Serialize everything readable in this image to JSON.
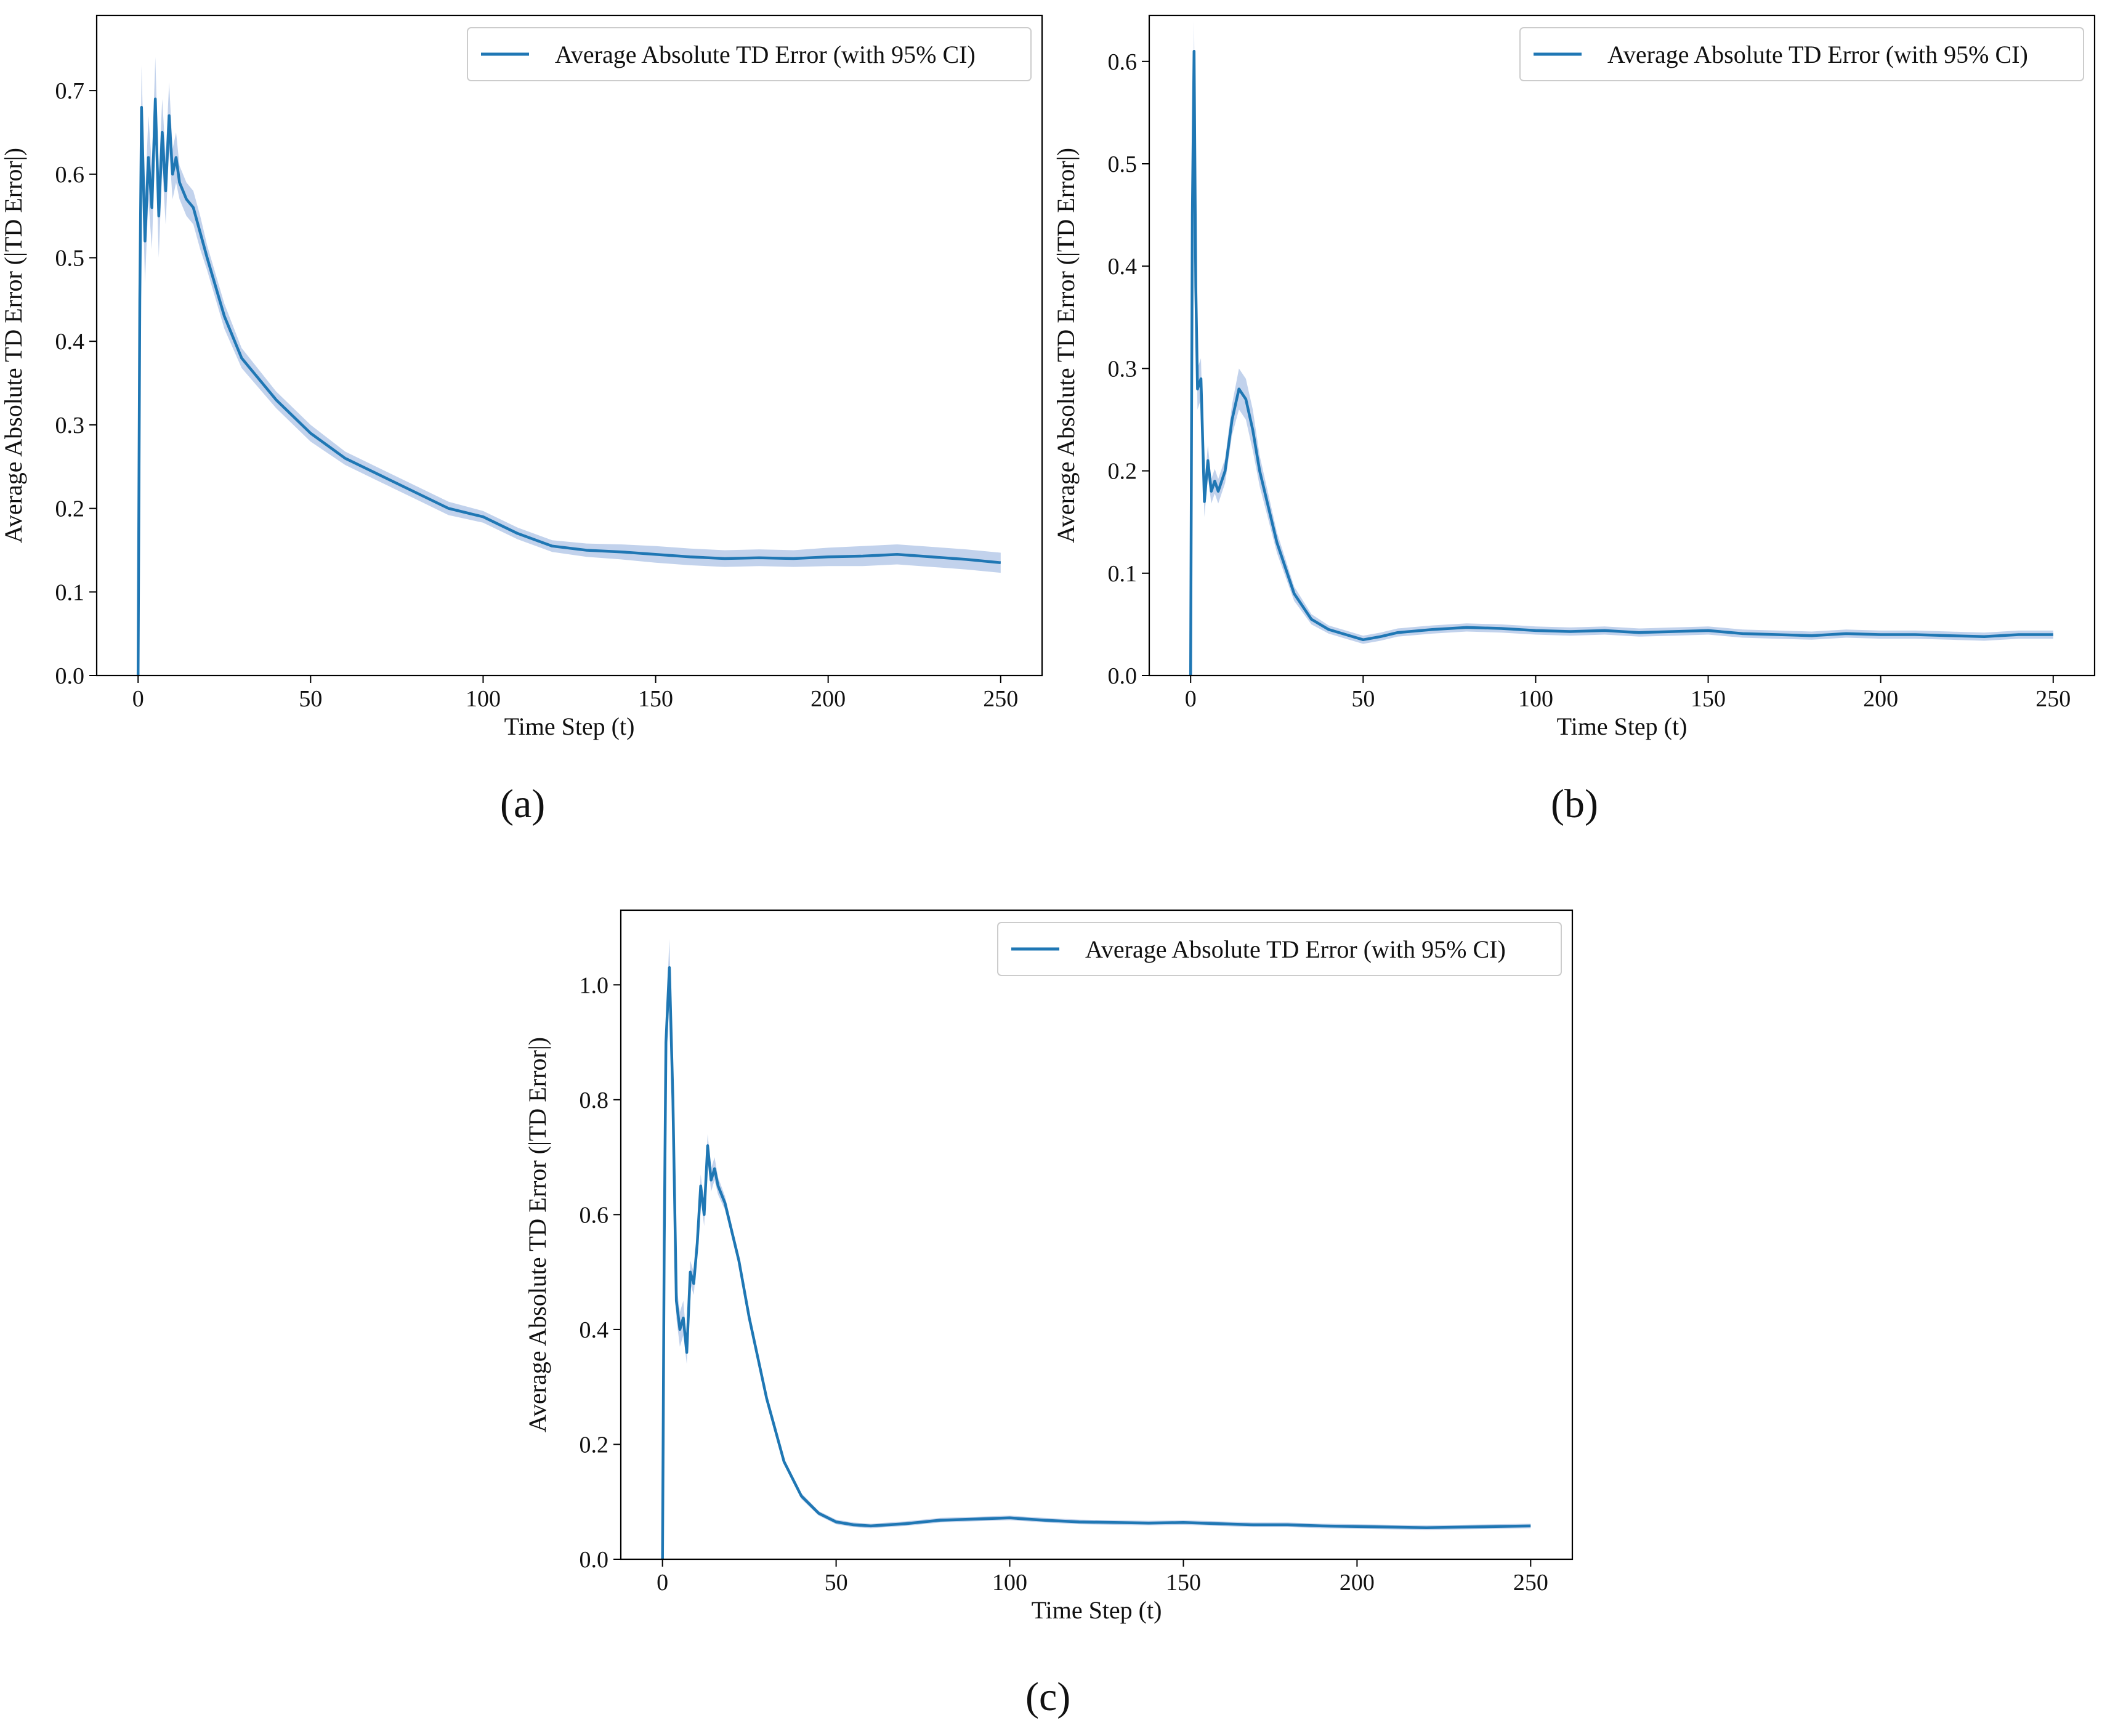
{
  "figure": {
    "captions": [
      "(a)",
      "(b)",
      "(c)"
    ]
  },
  "colors": {
    "line": "#1f77b4",
    "ci_band": "#aec3e6",
    "axes": "#000000",
    "legend_border": "#cccccc"
  },
  "chart_data": [
    {
      "type": "line",
      "panel": "a",
      "title": "",
      "xlabel": "Time Step (t)",
      "ylabel": "Average Absolute TD Error (|TD Error|)",
      "xlim": [
        -12,
        262
      ],
      "ylim": [
        0.0,
        0.79
      ],
      "xticks": [
        0,
        50,
        100,
        150,
        200,
        250
      ],
      "yticks": [
        0.0,
        0.1,
        0.2,
        0.3,
        0.4,
        0.5,
        0.6,
        0.7
      ],
      "ytick_decimals": 1,
      "grid": false,
      "legend": {
        "position": "upper-right",
        "entries": [
          "Average Absolute TD Error (with 95% CI)"
        ]
      },
      "series": [
        {
          "name": "Average Absolute TD Error (with 95% CI)",
          "x": [
            0,
            0.5,
            1,
            2,
            3,
            4,
            5,
            6,
            7,
            8,
            9,
            10,
            11,
            12,
            14,
            16,
            18,
            20,
            25,
            30,
            40,
            50,
            60,
            70,
            80,
            90,
            100,
            110,
            120,
            130,
            140,
            150,
            160,
            170,
            180,
            190,
            200,
            210,
            220,
            230,
            240,
            250
          ],
          "y": [
            0.0,
            0.45,
            0.68,
            0.52,
            0.62,
            0.56,
            0.69,
            0.55,
            0.65,
            0.58,
            0.67,
            0.6,
            0.62,
            0.59,
            0.57,
            0.56,
            0.53,
            0.5,
            0.43,
            0.38,
            0.33,
            0.29,
            0.26,
            0.24,
            0.22,
            0.2,
            0.19,
            0.17,
            0.155,
            0.15,
            0.148,
            0.145,
            0.142,
            0.14,
            0.141,
            0.14,
            0.142,
            0.143,
            0.145,
            0.142,
            0.139,
            0.135
          ],
          "ci": [
            0.0,
            0.05,
            0.05,
            0.05,
            0.05,
            0.05,
            0.05,
            0.05,
            0.04,
            0.04,
            0.04,
            0.03,
            0.03,
            0.02,
            0.02,
            0.02,
            0.02,
            0.015,
            0.015,
            0.012,
            0.01,
            0.01,
            0.008,
            0.008,
            0.008,
            0.008,
            0.007,
            0.007,
            0.007,
            0.008,
            0.009,
            0.01,
            0.01,
            0.01,
            0.01,
            0.01,
            0.011,
            0.012,
            0.012,
            0.012,
            0.012,
            0.012
          ]
        }
      ]
    },
    {
      "type": "line",
      "panel": "b",
      "title": "",
      "xlabel": "Time Step (t)",
      "ylabel": "Average Absolute TD Error (|TD Error|)",
      "xlim": [
        -12,
        262
      ],
      "ylim": [
        0.0,
        0.645
      ],
      "xticks": [
        0,
        50,
        100,
        150,
        200,
        250
      ],
      "yticks": [
        0.0,
        0.1,
        0.2,
        0.3,
        0.4,
        0.5,
        0.6
      ],
      "ytick_decimals": 1,
      "grid": false,
      "legend": {
        "position": "upper-right",
        "entries": [
          "Average Absolute TD Error (with 95% CI)"
        ]
      },
      "series": [
        {
          "name": "Average Absolute TD Error (with 95% CI)",
          "x": [
            0,
            0.5,
            1,
            1.5,
            2,
            3,
            4,
            5,
            6,
            7,
            8,
            10,
            12,
            14,
            16,
            18,
            20,
            25,
            30,
            35,
            40,
            45,
            50,
            55,
            60,
            70,
            80,
            90,
            100,
            110,
            120,
            130,
            140,
            150,
            160,
            170,
            180,
            190,
            200,
            210,
            220,
            230,
            240,
            250
          ],
          "y": [
            0.0,
            0.45,
            0.61,
            0.38,
            0.28,
            0.29,
            0.17,
            0.21,
            0.18,
            0.19,
            0.18,
            0.2,
            0.25,
            0.28,
            0.27,
            0.24,
            0.2,
            0.13,
            0.08,
            0.055,
            0.045,
            0.04,
            0.035,
            0.038,
            0.042,
            0.045,
            0.047,
            0.046,
            0.044,
            0.043,
            0.044,
            0.042,
            0.043,
            0.044,
            0.041,
            0.04,
            0.039,
            0.041,
            0.04,
            0.04,
            0.039,
            0.038,
            0.04,
            0.04
          ],
          "ci": [
            0.0,
            0.03,
            0.03,
            0.03,
            0.02,
            0.02,
            0.015,
            0.015,
            0.012,
            0.012,
            0.012,
            0.012,
            0.015,
            0.02,
            0.02,
            0.02,
            0.015,
            0.01,
            0.007,
            0.005,
            0.004,
            0.004,
            0.004,
            0.004,
            0.004,
            0.004,
            0.004,
            0.004,
            0.004,
            0.004,
            0.004,
            0.004,
            0.004,
            0.004,
            0.004,
            0.004,
            0.004,
            0.004,
            0.004,
            0.004,
            0.004,
            0.004,
            0.004,
            0.004
          ]
        }
      ]
    },
    {
      "type": "line",
      "panel": "c",
      "title": "",
      "xlabel": "Time Step (t)",
      "ylabel": "Average Absolute TD Error (|TD Error|)",
      "xlim": [
        -12,
        262
      ],
      "ylim": [
        0.0,
        1.13
      ],
      "xticks": [
        0,
        50,
        100,
        150,
        200,
        250
      ],
      "yticks": [
        0.0,
        0.2,
        0.4,
        0.6,
        0.8,
        1.0
      ],
      "ytick_decimals": 1,
      "grid": false,
      "legend": {
        "position": "upper-right",
        "entries": [
          "Average Absolute TD Error (with 95% CI)"
        ]
      },
      "series": [
        {
          "name": "Average Absolute TD Error (with 95% CI)",
          "x": [
            0,
            0.5,
            1,
            2,
            3,
            4,
            5,
            6,
            7,
            8,
            9,
            10,
            11,
            12,
            13,
            14,
            15,
            16,
            18,
            20,
            22,
            25,
            30,
            35,
            40,
            45,
            50,
            55,
            60,
            70,
            80,
            90,
            100,
            110,
            120,
            130,
            140,
            150,
            160,
            170,
            180,
            190,
            200,
            210,
            220,
            230,
            240,
            250
          ],
          "y": [
            0.0,
            0.55,
            0.9,
            1.03,
            0.8,
            0.45,
            0.4,
            0.42,
            0.36,
            0.5,
            0.48,
            0.55,
            0.65,
            0.6,
            0.72,
            0.66,
            0.68,
            0.65,
            0.62,
            0.57,
            0.52,
            0.42,
            0.28,
            0.17,
            0.11,
            0.08,
            0.065,
            0.06,
            0.058,
            0.062,
            0.068,
            0.07,
            0.072,
            0.068,
            0.065,
            0.064,
            0.063,
            0.064,
            0.062,
            0.06,
            0.06,
            0.058,
            0.057,
            0.056,
            0.055,
            0.056,
            0.057,
            0.058
          ],
          "ci": [
            0.0,
            0.04,
            0.04,
            0.05,
            0.04,
            0.03,
            0.03,
            0.03,
            0.02,
            0.02,
            0.02,
            0.02,
            0.02,
            0.02,
            0.02,
            0.02,
            0.02,
            0.015,
            0.012,
            0.01,
            0.01,
            0.008,
            0.006,
            0.005,
            0.005,
            0.004,
            0.004,
            0.004,
            0.004,
            0.004,
            0.004,
            0.004,
            0.004,
            0.004,
            0.004,
            0.004,
            0.004,
            0.004,
            0.004,
            0.004,
            0.004,
            0.004,
            0.004,
            0.004,
            0.004,
            0.004,
            0.004,
            0.004
          ]
        }
      ]
    }
  ]
}
